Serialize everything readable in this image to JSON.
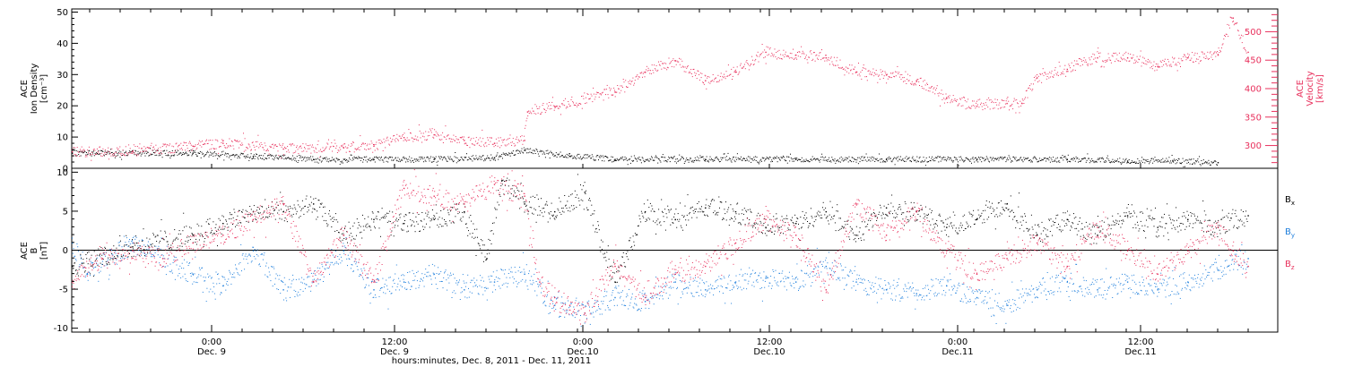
{
  "colors": {
    "black": "#000000",
    "pink": "#e8305c",
    "blue": "#1f7fdc"
  },
  "top_panel": {
    "left_axis_label": [
      "ACE",
      "Ion Density",
      "[cm⁻³]"
    ],
    "right_axis_label": [
      "ACE",
      "Velocity",
      "[km/s]"
    ],
    "left_ticks": [
      "0",
      "10",
      "20",
      "30",
      "40",
      "50"
    ],
    "right_ticks": [
      "300",
      "350",
      "400",
      "450",
      "500"
    ]
  },
  "bottom_panel": {
    "left_axis_label": [
      "ACE",
      "B",
      "[nT]"
    ],
    "left_ticks": [
      "-10",
      "-5",
      "0",
      "5",
      "10"
    ],
    "legend": {
      "bx": "B",
      "bx_sub": "x",
      "by": "B",
      "by_sub": "y",
      "bz": "B",
      "bz_sub": "z"
    }
  },
  "x_ticks": [
    {
      "time": "0:00",
      "date": "Dec. 9"
    },
    {
      "time": "12:00",
      "date": "Dec. 9"
    },
    {
      "time": "0:00",
      "date": "Dec.10"
    },
    {
      "time": "12:00",
      "date": "Dec.10"
    },
    {
      "time": "0:00",
      "date": "Dec.11"
    },
    {
      "time": "12:00",
      "date": "Dec.11"
    }
  ],
  "x_title": "hours:minutes, Dec. 8, 2011 - Dec. 11, 2011",
  "chart_data": [
    {
      "type": "scatter",
      "panel": "top",
      "x_unit": "hours since 2011-12-08 14:00",
      "xlim": [
        0,
        80
      ],
      "series": [
        {
          "name": "Ion Density",
          "axis": "left",
          "ylim": [
            0,
            51
          ],
          "color": "#000000",
          "x": [
            0,
            8,
            12,
            16,
            20,
            24,
            28,
            30,
            33,
            36,
            42,
            48,
            54,
            60,
            66,
            70,
            73,
            76
          ],
          "y": [
            5,
            5,
            4,
            3,
            3,
            3,
            3.5,
            6,
            4,
            3,
            3,
            3,
            3,
            3,
            3,
            2.5,
            2.5,
            2
          ]
        },
        {
          "name": "Velocity",
          "axis": "right",
          "ylim": [
            260,
            540
          ],
          "color": "#e8305c",
          "x": [
            0,
            4,
            8,
            10,
            14,
            18,
            20,
            22,
            24,
            26,
            28,
            30,
            30.2,
            32,
            36,
            38,
            40,
            42,
            44,
            46,
            48,
            50,
            52,
            54,
            56,
            58,
            60,
            62,
            63,
            64,
            66,
            68,
            70,
            72,
            74,
            76,
            77,
            78
          ],
          "y": [
            290,
            290,
            300,
            305,
            295,
            297,
            300,
            315,
            320,
            310,
            305,
            310,
            360,
            370,
            395,
            430,
            450,
            415,
            430,
            465,
            460,
            455,
            430,
            425,
            415,
            385,
            370,
            375,
            375,
            420,
            435,
            455,
            455,
            440,
            455,
            460,
            525,
            465
          ]
        }
      ]
    },
    {
      "type": "scatter",
      "panel": "bottom",
      "x_unit": "hours since 2011-12-08 14:00",
      "xlim": [
        0,
        80
      ],
      "ylim": [
        -10.5,
        10.5
      ],
      "series": [
        {
          "name": "Bx",
          "color": "#000000",
          "x": [
            0,
            4,
            8,
            10,
            12,
            14,
            16,
            18,
            20,
            22,
            24,
            26,
            27.5,
            28.5,
            30,
            32,
            34,
            36,
            38,
            40,
            42,
            44,
            46,
            48,
            50,
            52,
            54,
            56,
            58,
            60,
            62,
            64,
            66,
            68,
            70,
            72,
            74,
            76,
            78
          ],
          "y": [
            -2,
            0.5,
            2,
            3.5,
            5,
            5,
            6,
            2,
            4,
            3.5,
            4,
            5,
            -1,
            9,
            6,
            5,
            7.5,
            -4,
            5,
            4,
            5.5,
            5,
            3,
            3.5,
            5,
            2,
            5.5,
            5,
            3,
            4,
            6,
            2,
            4,
            2,
            4.5,
            3,
            4,
            3,
            4.5
          ]
        },
        {
          "name": "By",
          "color": "#1f7fdc",
          "x": [
            0,
            1,
            4,
            8,
            10,
            12,
            14,
            16,
            18,
            20,
            22,
            24,
            26,
            28,
            30,
            32,
            34,
            36,
            38,
            40,
            42,
            44,
            46,
            48,
            50,
            52,
            54,
            56,
            58,
            60,
            62,
            64,
            66,
            68,
            70,
            72,
            74,
            76,
            78
          ],
          "y": [
            1,
            -3,
            1,
            -3,
            -4.5,
            0,
            -5,
            -4,
            0,
            -5,
            -4,
            -3,
            -5,
            -4,
            -3,
            -7,
            -8,
            -6,
            -6.5,
            -4,
            -5,
            -4,
            -3.5,
            -4,
            -2,
            -4,
            -5,
            -5.5,
            -4.5,
            -6,
            -7,
            -5,
            -4,
            -5,
            -4,
            -5,
            -4,
            -2.5,
            -1
          ]
        },
        {
          "name": "Bz",
          "color": "#e8305c",
          "x": [
            0,
            2,
            4,
            6,
            8,
            10,
            12,
            14,
            16,
            18,
            20,
            22,
            24,
            26,
            28,
            30,
            31,
            32,
            33,
            34,
            36,
            38,
            40,
            42,
            44,
            46,
            48,
            50,
            52,
            54,
            56,
            58,
            60,
            62,
            64,
            66,
            68,
            70,
            72,
            74,
            76,
            77,
            78
          ],
          "y": [
            -4,
            -1,
            0,
            -1,
            1,
            2,
            4,
            6,
            -4,
            2,
            -4,
            8,
            7,
            6,
            8.5,
            7,
            -4,
            -6,
            -7,
            -8,
            -2,
            -6,
            -3,
            -2,
            1,
            4,
            2,
            -5,
            6,
            2,
            5,
            0,
            -3,
            -1,
            1,
            -2,
            3,
            0,
            -3,
            0,
            3,
            0,
            -2
          ]
        }
      ]
    }
  ]
}
